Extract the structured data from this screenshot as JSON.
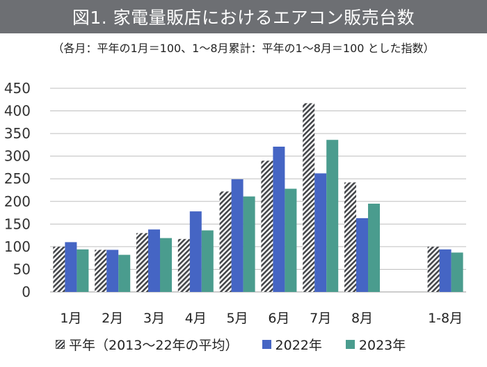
{
  "title": "図1.  家電量販店におけるエアコン販売台数",
  "subtitle": "（各月：平年の1月＝100、1〜8月累計：平年の1〜8月＝100 とした指数）",
  "colors": {
    "avg": "#44464a",
    "y2022": "#4565c4",
    "y2023": "#4a9c8e",
    "grid": "#bfbfbf",
    "title_bg": "#6d6f73"
  },
  "chart_data": {
    "type": "bar",
    "categories": [
      "1月",
      "2月",
      "3月",
      "4月",
      "5月",
      "6月",
      "7月",
      "8月",
      "",
      "1-8月"
    ],
    "series": [
      {
        "name": "平年（2013〜22年の平均）",
        "values": [
          100,
          93,
          130,
          117,
          222,
          290,
          417,
          242,
          null,
          100
        ],
        "pattern": "hatched"
      },
      {
        "name": "2022年",
        "values": [
          110,
          93,
          138,
          178,
          249,
          321,
          262,
          163,
          null,
          94
        ]
      },
      {
        "name": "2023年",
        "values": [
          94,
          82,
          119,
          136,
          211,
          228,
          336,
          195,
          null,
          87
        ]
      }
    ],
    "ylim": [
      0,
      450
    ],
    "yticks": [
      0,
      50,
      100,
      150,
      200,
      250,
      300,
      350,
      400,
      450
    ],
    "grid": true,
    "legend_position": "bottom"
  }
}
